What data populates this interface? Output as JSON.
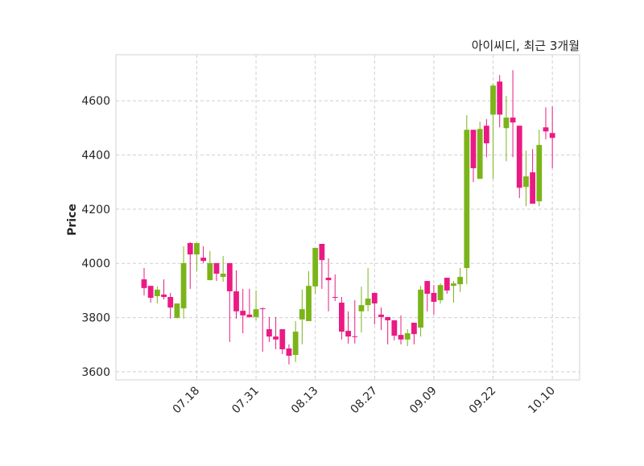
{
  "chart_data": {
    "type": "candlestick",
    "title": "아이씨디, 최근 3개월",
    "ylabel": "Price",
    "xlabel": "",
    "ylim": [
      3570,
      4770
    ],
    "yticks": [
      3600,
      3800,
      4000,
      4200,
      4400,
      4600
    ],
    "xtick_labels": [
      {
        "index": 8,
        "label": "07.18"
      },
      {
        "index": 17,
        "label": "07.31"
      },
      {
        "index": 26,
        "label": "08.13"
      },
      {
        "index": 35,
        "label": "08.27"
      },
      {
        "index": 44,
        "label": "09.09"
      },
      {
        "index": 53,
        "label": "09.22"
      },
      {
        "index": 62,
        "label": "10.10"
      }
    ],
    "grid": true,
    "colors": {
      "up": "#7bb41a",
      "down": "#ea1a84",
      "grid": "#cfcfcf",
      "frame": "#d9d9d9"
    },
    "ohlc": [
      [
        3941,
        3983,
        3882,
        3909
      ],
      [
        3917,
        3917,
        3855,
        3873
      ],
      [
        3879,
        3915,
        3852,
        3903
      ],
      [
        3885,
        3941,
        3867,
        3876
      ],
      [
        3876,
        3891,
        3796,
        3837
      ],
      [
        3799,
        3852,
        3796,
        3852
      ],
      [
        3834,
        4063,
        3796,
        4001
      ],
      [
        4075,
        4078,
        3906,
        4033
      ],
      [
        4033,
        4075,
        3971,
        4075
      ],
      [
        4021,
        4063,
        4001,
        4009
      ],
      [
        3938,
        4045,
        3938,
        4001
      ],
      [
        4001,
        4001,
        3935,
        3962
      ],
      [
        3950,
        4027,
        3932,
        3962
      ],
      [
        4001,
        4001,
        3710,
        3897
      ],
      [
        3897,
        3974,
        3796,
        3823
      ],
      [
        3825,
        3906,
        3742,
        3808
      ],
      [
        3811,
        3906,
        3799,
        3802
      ],
      [
        3802,
        3900,
        3790,
        3831
      ],
      [
        3834,
        3837,
        3674,
        3831
      ],
      [
        3757,
        3802,
        3710,
        3730
      ],
      [
        3730,
        3802,
        3683,
        3719
      ],
      [
        3757,
        3757,
        3665,
        3683
      ],
      [
        3686,
        3701,
        3627,
        3659
      ],
      [
        3662,
        3787,
        3636,
        3748
      ],
      [
        3793,
        3903,
        3701,
        3831
      ],
      [
        3787,
        3971,
        3787,
        3917
      ],
      [
        3915,
        4057,
        3888,
        4057
      ],
      [
        4072,
        4072,
        3906,
        4012
      ],
      [
        3947,
        4018,
        3823,
        3938
      ],
      [
        3876,
        3959,
        3861,
        3873
      ],
      [
        3855,
        3876,
        3719,
        3748
      ],
      [
        3751,
        3823,
        3704,
        3730
      ],
      [
        3731,
        3864,
        3704,
        3729
      ],
      [
        3823,
        3914,
        3745,
        3846
      ],
      [
        3846,
        3983,
        3823,
        3870
      ],
      [
        3891,
        3891,
        3775,
        3852
      ],
      [
        3811,
        3837,
        3754,
        3802
      ],
      [
        3802,
        3802,
        3701,
        3790
      ],
      [
        3790,
        3790,
        3716,
        3733
      ],
      [
        3736,
        3808,
        3701,
        3719
      ],
      [
        3719,
        3757,
        3695,
        3742
      ],
      [
        3781,
        3781,
        3701,
        3739
      ],
      [
        3763,
        3917,
        3730,
        3903
      ],
      [
        3935,
        3935,
        3823,
        3888
      ],
      [
        3891,
        3920,
        3811,
        3858
      ],
      [
        3864,
        3926,
        3852,
        3920
      ],
      [
        3947,
        3947,
        3888,
        3900
      ],
      [
        3917,
        3935,
        3855,
        3926
      ],
      [
        3923,
        3983,
        3894,
        3950
      ],
      [
        3983,
        4547,
        3923,
        4493
      ],
      [
        4493,
        4493,
        4300,
        4351
      ],
      [
        4312,
        4523,
        4312,
        4496
      ],
      [
        4508,
        4532,
        4392,
        4443
      ],
      [
        4549,
        4662,
        4312,
        4656
      ],
      [
        4671,
        4695,
        4502,
        4549
      ],
      [
        4499,
        4618,
        4377,
        4538
      ],
      [
        4538,
        4713,
        4392,
        4520
      ],
      [
        4508,
        4508,
        4241,
        4279
      ],
      [
        4282,
        4416,
        4211,
        4321
      ],
      [
        4336,
        4422,
        4220,
        4220
      ],
      [
        4229,
        4493,
        4211,
        4437
      ],
      [
        4502,
        4576,
        4458,
        4487
      ],
      [
        4481,
        4579,
        4351,
        4463
      ]
    ]
  }
}
